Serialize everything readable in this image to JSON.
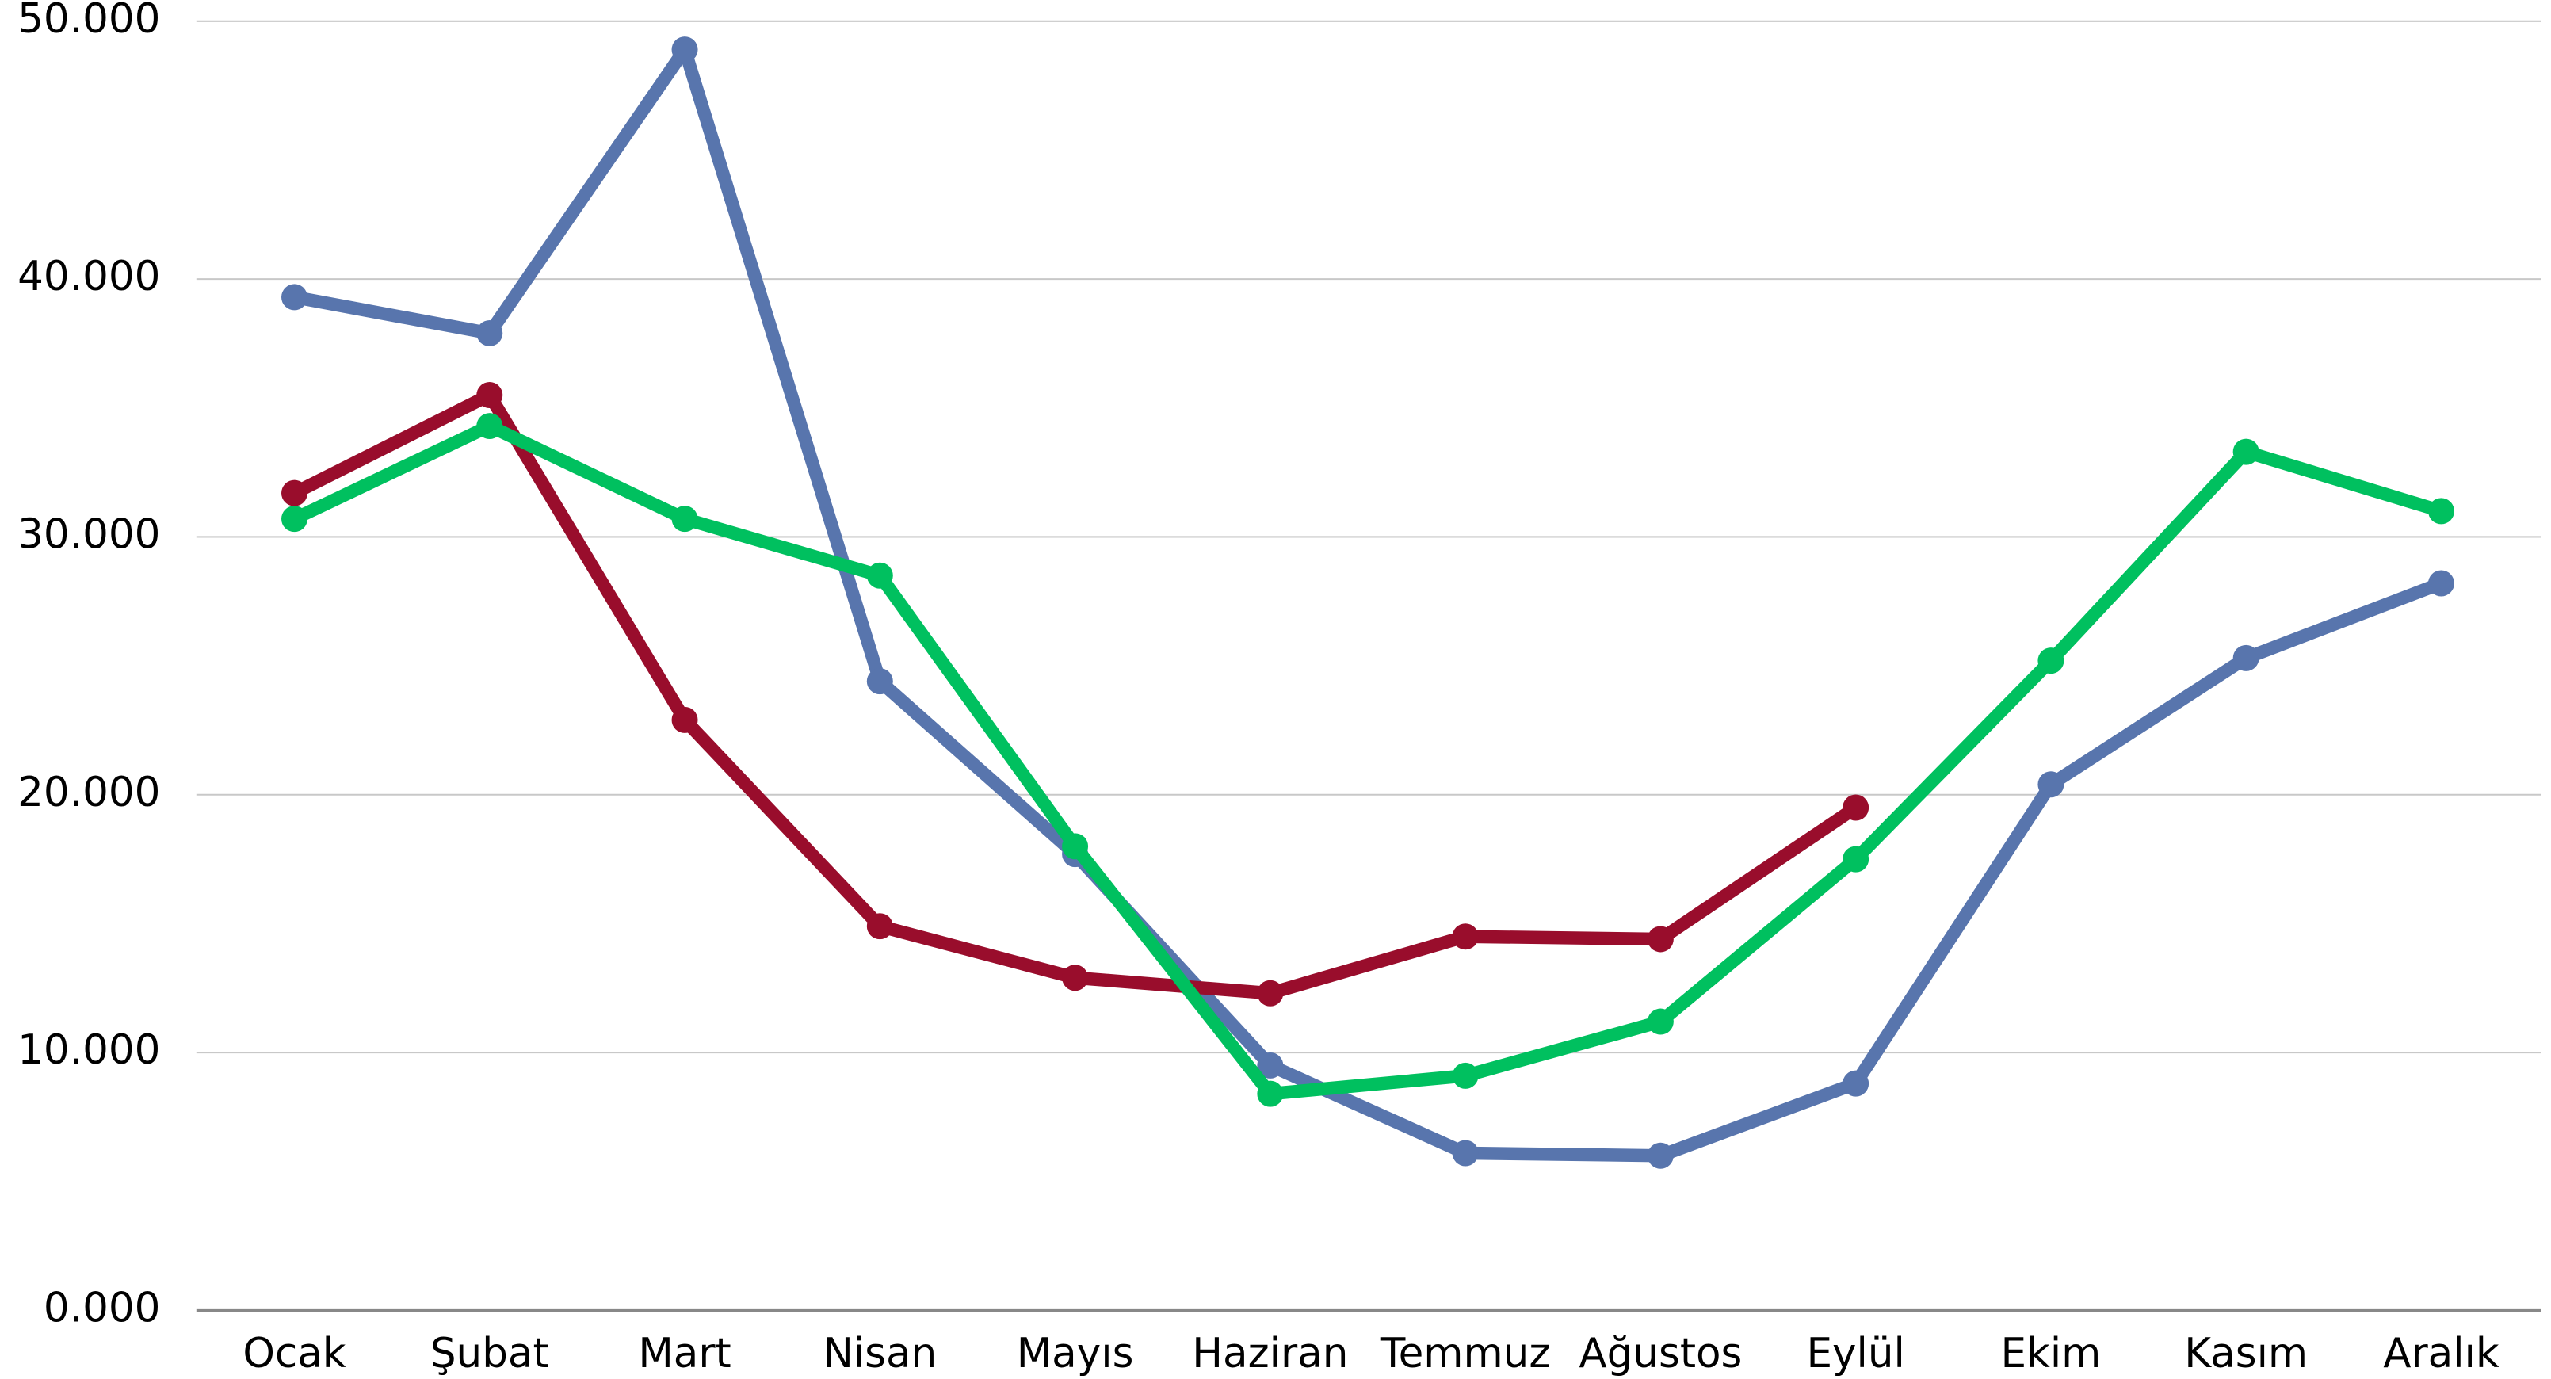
{
  "chart_data": {
    "type": "line",
    "categories": [
      "Ocak",
      "Şubat",
      "Mart",
      "Nisan",
      "Mayıs",
      "Haziran",
      "Temmuz",
      "Ağustos",
      "Eylül",
      "Ekim",
      "Kasım",
      "Aralık"
    ],
    "series": [
      {
        "color": "#5875ad",
        "values": [
          39300,
          37900,
          48900,
          24400,
          17700,
          9500,
          6100,
          6000,
          8800,
          20400,
          25300,
          28200
        ]
      },
      {
        "color": "#990d2c",
        "values": [
          31700,
          35500,
          22900,
          14900,
          12900,
          12300,
          14500,
          14400,
          19500,
          null,
          null,
          null
        ]
      },
      {
        "color": "#00c05f",
        "values": [
          30700,
          34300,
          30700,
          28500,
          18000,
          8400,
          9100,
          11200,
          17500,
          25200,
          33300,
          31000
        ]
      }
    ],
    "ylim": [
      0,
      50000
    ],
    "yticks": [
      {
        "value": 0,
        "label": "0.000"
      },
      {
        "value": 10000,
        "label": "10.000"
      },
      {
        "value": 20000,
        "label": "20.000"
      },
      {
        "value": 30000,
        "label": "30.000"
      },
      {
        "value": 40000,
        "label": "40.000"
      },
      {
        "value": 50000,
        "label": "50.000"
      }
    ],
    "grid": true
  }
}
